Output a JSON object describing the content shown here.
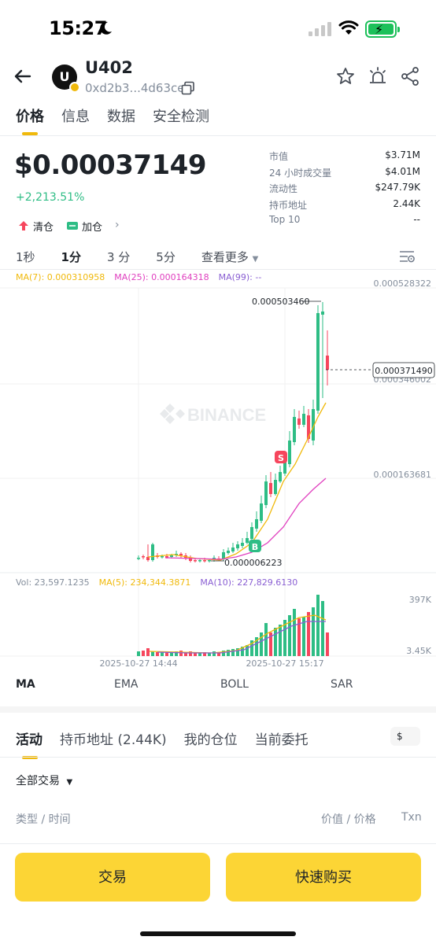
{
  "status_bar": {
    "time": "15:27"
  },
  "header": {
    "token_name": "U402",
    "avatar_letter": "U",
    "address": "0xd2b3...4d63ce"
  },
  "tabs": [
    "价格",
    "信息",
    "数据",
    "安全检测"
  ],
  "price": {
    "value": "$0.00037149",
    "change": "+2,213.51%",
    "chip_clear": "清仓",
    "chip_add": "加仓"
  },
  "stats": [
    {
      "label": "市值",
      "value": "$3.71M"
    },
    {
      "label": "24 小时成交量",
      "value": "$4.01M"
    },
    {
      "label": "流动性",
      "value": "$247.79K"
    },
    {
      "label": "持币地址",
      "value": "2.44K"
    },
    {
      "label": "Top 10",
      "value": "--"
    }
  ],
  "intervals": [
    "1秒",
    "1分",
    "3 分",
    "5分"
  ],
  "intervals_more": "查看更多",
  "chart": {
    "ma_legend": {
      "ma7": "MA(7): 0.000310958",
      "ma25": "MA(25): 0.000164318",
      "ma99": "MA(99): --"
    },
    "price_axis": [
      "0.000528322",
      "0.000346002",
      "0.000163681"
    ],
    "current_price_label": "0.000371490",
    "high_label": "0.000503460",
    "low_label": "0.000006223",
    "watermark": "BINANCE",
    "buy_marker": "B",
    "sell_marker": "S",
    "vol_legend": {
      "vol": "Vol: 23,597.1235",
      "ma5": "MA(5): 234,344.3871",
      "ma10": "MA(10): 227,829.6130"
    },
    "vol_axis": [
      "397K",
      "3.45K"
    ],
    "time_axis": [
      "2025-10-27 14:44",
      "2025-10-27 15:17"
    ],
    "colors": {
      "up": "#2ebd85",
      "down": "#f6465d",
      "ma7": "#f0b90b",
      "ma25": "#e03fbf",
      "ma99": "#8a5fd3"
    }
  },
  "indicator_tabs": [
    "MA",
    "EMA",
    "BOLL",
    "SAR"
  ],
  "activity_tabs": [
    "活动",
    "持币地址 (2.44K)",
    "我的仓位",
    "当前委托"
  ],
  "currency": "$",
  "filter": "全部交易",
  "columns": {
    "type_time": "类型 / 时间",
    "value_price": "价值 / 价格",
    "txn": "Txn"
  },
  "buttons": {
    "trade": "交易",
    "quick_buy": "快速购买"
  }
}
